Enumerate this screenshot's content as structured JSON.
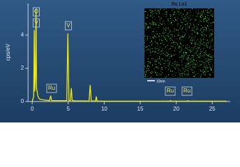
{
  "chart_data": {
    "type": "line",
    "y_label": "cps/eV",
    "color": "#f2e80a",
    "x": [
      0,
      0.2,
      0.28,
      0.36,
      0.45,
      0.52,
      0.6,
      0.8,
      1.0,
      1.5,
      2.4,
      2.56,
      2.7,
      3.5,
      4.8,
      4.95,
      5.1,
      5.3,
      5.43,
      5.55,
      6.0,
      7.9,
      8.04,
      8.2,
      8.8,
      8.9,
      9.0,
      10,
      19.1,
      19.2,
      19.3,
      21.5,
      21.6,
      21.7,
      27
    ],
    "values": [
      0,
      0.3,
      4.3,
      0.6,
      1.5,
      5.6,
      0.8,
      0.3,
      0.15,
      0.1,
      0.05,
      0.35,
      0.05,
      0.05,
      0.05,
      4.1,
      0.05,
      0.05,
      0.8,
      0.05,
      0.04,
      0.03,
      1.0,
      0.03,
      0.03,
      0.3,
      0.03,
      0.02,
      0.02,
      0.06,
      0.02,
      0.02,
      0.05,
      0.02,
      0.02
    ],
    "xlim": [
      -0.6,
      27.5
    ],
    "ylim": [
      -0.3,
      5.9
    ],
    "xticks": [
      0,
      5,
      10,
      15,
      20,
      25
    ],
    "yticks": [
      0,
      2,
      4
    ],
    "peak_labels": [
      "O",
      "V",
      "V",
      "Ru",
      "Ru",
      "Ru"
    ],
    "inset": {
      "title": "Ru Lα1",
      "scale": "10nm"
    }
  }
}
